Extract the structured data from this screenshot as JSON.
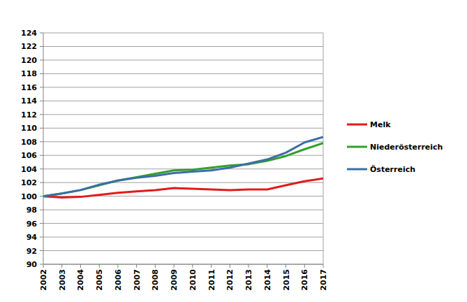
{
  "chart_data": {
    "type": "line",
    "x": [
      2002,
      2003,
      2004,
      2005,
      2006,
      2007,
      2008,
      2009,
      2010,
      2011,
      2012,
      2013,
      2014,
      2015,
      2016,
      2017
    ],
    "xlim": [
      2002,
      2017
    ],
    "xticks": [
      2002,
      2003,
      2004,
      2005,
      2006,
      2007,
      2008,
      2009,
      2010,
      2011,
      2012,
      2013,
      2014,
      2015,
      2016,
      2017
    ],
    "ylim": [
      90,
      124
    ],
    "yticks": [
      90,
      92,
      94,
      96,
      98,
      100,
      102,
      104,
      106,
      108,
      110,
      112,
      114,
      116,
      118,
      120,
      122,
      124
    ],
    "grid": true,
    "legend": "right",
    "series": [
      {
        "name": "Melk",
        "color": "#e31a1c",
        "values": [
          100,
          99.8,
          99.9,
          100.2,
          100.5,
          100.7,
          100.9,
          101.2,
          101.1,
          101.0,
          100.9,
          101.0,
          101.0,
          101.6,
          102.2,
          102.6
        ]
      },
      {
        "name": "Niederösterreich",
        "color": "#33a02c",
        "values": [
          100,
          100.4,
          100.9,
          101.6,
          102.3,
          102.8,
          103.3,
          103.8,
          103.9,
          104.2,
          104.5,
          104.7,
          105.2,
          105.9,
          106.9,
          107.8
        ]
      },
      {
        "name": "Österreich",
        "color": "#3b6ea5",
        "values": [
          100,
          100.4,
          100.9,
          101.7,
          102.3,
          102.7,
          103.0,
          103.4,
          103.6,
          103.8,
          104.2,
          104.8,
          105.4,
          106.4,
          107.9,
          108.7
        ]
      }
    ]
  }
}
